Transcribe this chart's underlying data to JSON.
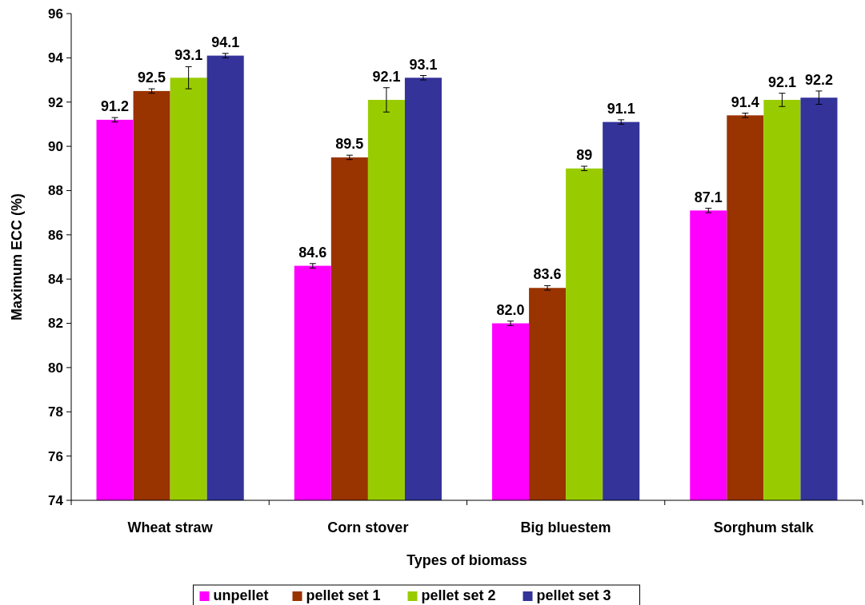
{
  "chart_data": {
    "type": "bar",
    "xlabel": "Types of biomass",
    "ylabel": "Maximum ECC (%)",
    "categories": [
      "Wheat straw",
      "Corn stover",
      "Big bluestem",
      "Sorghum stalk"
    ],
    "series": [
      {
        "name": "unpellet",
        "color": "#ff00ff",
        "values": [
          91.2,
          84.6,
          82.0,
          87.1
        ],
        "errors": [
          0.1,
          0.1,
          0.1,
          0.1
        ],
        "value_labels": [
          "91.2",
          "84.6",
          "82.0",
          "87.1"
        ]
      },
      {
        "name": "pellet set 1",
        "color": "#993300",
        "values": [
          92.5,
          89.5,
          83.6,
          91.4
        ],
        "errors": [
          0.1,
          0.1,
          0.1,
          0.1
        ],
        "value_labels": [
          "92.5",
          "89.5",
          "83.6",
          "91.4"
        ]
      },
      {
        "name": "pellet set 2",
        "color": "#99cc00",
        "values": [
          93.1,
          92.1,
          89,
          92.1
        ],
        "errors": [
          0.5,
          0.55,
          0.1,
          0.3
        ],
        "value_labels": [
          "93.1",
          "92.1",
          "89",
          "92.1"
        ]
      },
      {
        "name": "pellet set 3",
        "color": "#333399",
        "values": [
          94.1,
          93.1,
          91.1,
          92.2
        ],
        "errors": [
          0.1,
          0.1,
          0.1,
          0.3
        ],
        "value_labels": [
          "94.1",
          "93.1",
          "91.1",
          "92.2"
        ]
      }
    ],
    "ylim": [
      74,
      96
    ],
    "yticks": [
      74,
      76,
      78,
      80,
      82,
      84,
      86,
      88,
      90,
      92,
      94,
      96
    ],
    "legend": "bottom"
  }
}
